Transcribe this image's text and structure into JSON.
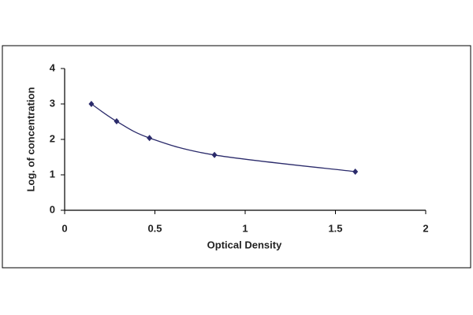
{
  "chart_data": {
    "type": "line",
    "x_label": "Optical Density",
    "y_label": "Log. of concentration",
    "x": [
      0.148,
      0.288,
      0.47,
      0.83,
      1.61
    ],
    "series": [
      {
        "color": "#2b2b6b",
        "values": [
          3.0,
          2.51,
          2.04,
          1.56,
          1.09
        ]
      }
    ],
    "xlim": [
      0,
      2
    ],
    "xticks": [
      0,
      0.5,
      1,
      1.5,
      2
    ],
    "ylim": [
      0,
      4
    ],
    "yticks": [
      0,
      1,
      2,
      3,
      4
    ],
    "grid": false
  }
}
